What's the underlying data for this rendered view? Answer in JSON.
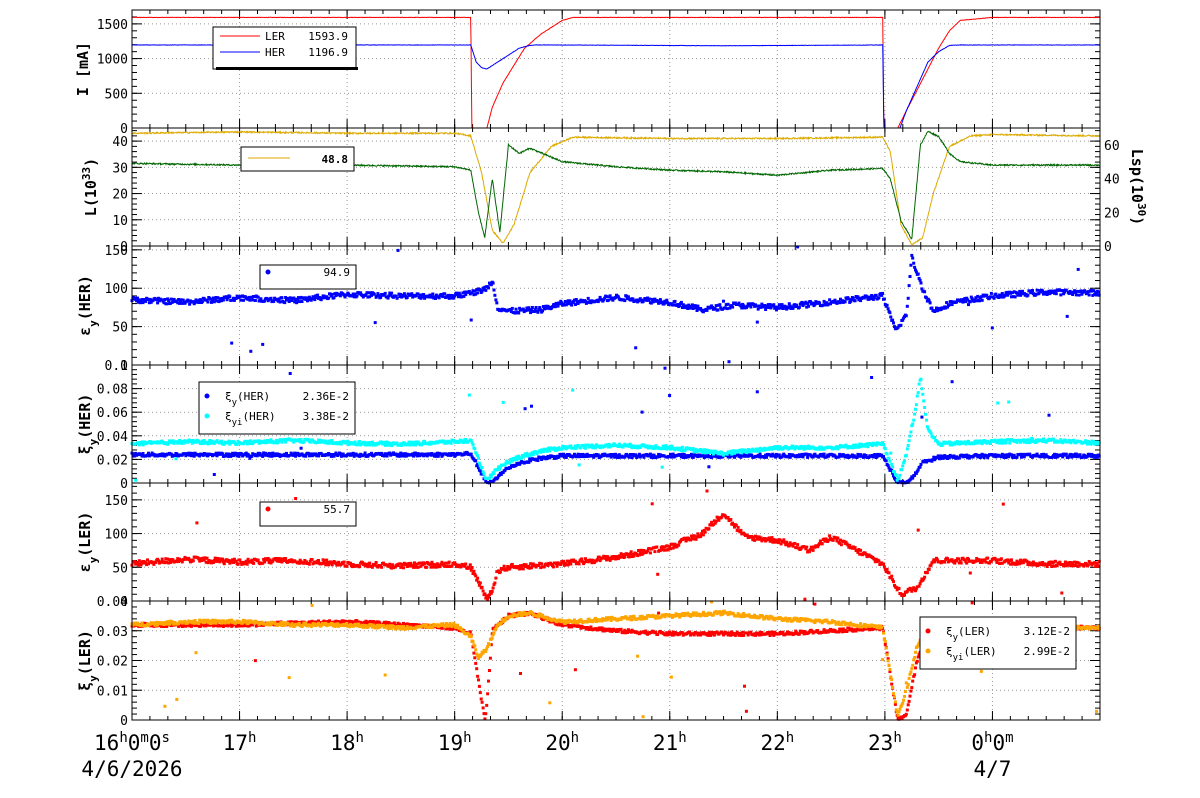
{
  "colors": {
    "red": "#ff0000",
    "blue": "#0000ff",
    "cyan": "#00ffff",
    "gold": "#ddaa00",
    "green": "#006600",
    "orange": "#ffa500"
  },
  "time_axis": {
    "ticks": [
      {
        "h": 16,
        "label": "16",
        "suffix": "0m0s"
      },
      {
        "h": 17,
        "label": "17"
      },
      {
        "h": 18,
        "label": "18"
      },
      {
        "h": 19,
        "label": "19"
      },
      {
        "h": 20,
        "label": "20"
      },
      {
        "h": 21,
        "label": "21"
      },
      {
        "h": 22,
        "label": "22"
      },
      {
        "h": 23,
        "label": "23"
      },
      {
        "h": 24,
        "label": "0",
        "suffix": "0m"
      }
    ],
    "date_labels": [
      {
        "h": 16,
        "text": "4/6/2026"
      },
      {
        "h": 24,
        "text": "4/7"
      }
    ]
  },
  "chart_data": [
    {
      "id": "current",
      "type": "line",
      "ylabel": "I [mA]",
      "ylim": [
        0,
        1700
      ],
      "yticks": [
        0,
        500,
        1000,
        1500
      ],
      "series": [
        {
          "name": "LER",
          "value": "1593.9",
          "color": "red",
          "x": [
            16,
            19.15,
            19.16,
            19.3,
            19.35,
            19.45,
            19.55,
            19.65,
            19.8,
            20.0,
            20.1,
            22.98,
            22.99,
            23.12,
            23.2,
            23.3,
            23.4,
            23.5,
            23.6,
            23.7,
            24.0,
            25.0
          ],
          "y": [
            1593,
            1593,
            0,
            0,
            300,
            650,
            900,
            1150,
            1350,
            1550,
            1593,
            1593,
            0,
            0,
            250,
            550,
            850,
            1150,
            1400,
            1550,
            1593,
            1593
          ]
        },
        {
          "name": "HER",
          "value": "1196.9",
          "color": "blue",
          "x": [
            16,
            19.15,
            19.2,
            19.25,
            19.3,
            19.35,
            19.5,
            19.6,
            19.7,
            19.75,
            20.0,
            21.5,
            22.98,
            22.99,
            23.14,
            23.2,
            23.3,
            23.4,
            23.5,
            23.6,
            23.7,
            25.0
          ],
          "y": [
            1196,
            1196,
            950,
            870,
            850,
            900,
            1050,
            1150,
            1190,
            1196,
            1196,
            1185,
            1196,
            0,
            0,
            250,
            600,
            950,
            1100,
            1190,
            1196,
            1196
          ]
        }
      ]
    },
    {
      "id": "luminosity",
      "type": "line",
      "ylabel": "L(10",
      "ylabel_exp": "33",
      "ylabel_end": ")",
      "ylim": [
        0,
        45
      ],
      "yticks": [
        0,
        10,
        20,
        30,
        40
      ],
      "y2label": "Lsp(10",
      "y2label_exp": "30",
      "y2label_end": ")",
      "y2lim": [
        0,
        70
      ],
      "y2ticks": [
        0,
        20,
        40,
        60
      ],
      "legend_value": "48.8",
      "series": [
        {
          "name": "L",
          "color": "gold",
          "x": [
            16,
            17,
            18,
            19,
            19.15,
            19.25,
            19.35,
            19.45,
            19.55,
            19.7,
            19.9,
            20.1,
            21,
            22,
            22.98,
            23.05,
            23.15,
            23.25,
            23.35,
            23.45,
            23.6,
            23.8,
            24,
            25
          ],
          "y": [
            43,
            43.5,
            43,
            43,
            42,
            28,
            6,
            1,
            8,
            28,
            38,
            41.5,
            41,
            41,
            41.5,
            36,
            8,
            0.5,
            3,
            20,
            38,
            42,
            42.5,
            42
          ]
        },
        {
          "name": "Lsp",
          "color": "green",
          "axis": "y2",
          "x": [
            16,
            17,
            17.5,
            18,
            19,
            19.15,
            19.22,
            19.28,
            19.35,
            19.42,
            19.5,
            19.6,
            19.7,
            20,
            20.5,
            21,
            21.5,
            22,
            22.5,
            22.98,
            23.05,
            23.15,
            23.25,
            23.33,
            23.4,
            23.5,
            23.6,
            23.7,
            24,
            25
          ],
          "y": [
            49,
            48,
            47,
            48,
            47,
            45,
            20,
            5,
            40,
            8,
            60,
            55,
            58,
            50,
            47,
            45,
            44,
            42,
            45,
            46,
            40,
            15,
            4,
            60,
            68,
            65,
            55,
            50,
            48,
            48
          ]
        }
      ]
    },
    {
      "id": "eps_her",
      "type": "scatter",
      "ylabel": "ε",
      "ylabel_sub": "y",
      "ylabel_end": "(HER)",
      "ylim": [
        0,
        155
      ],
      "yticks": [
        0,
        50,
        100,
        150
      ],
      "series": [
        {
          "name": "",
          "value": "94.9",
          "color": "blue",
          "x": [
            16,
            16.5,
            17,
            17.5,
            18,
            18.5,
            19,
            19.2,
            19.3,
            19.35,
            19.4,
            19.5,
            19.8,
            20,
            20.5,
            21,
            21.3,
            21.6,
            22,
            22.5,
            22.98,
            23.1,
            23.2,
            23.25,
            23.35,
            23.45,
            23.6,
            24,
            24.5,
            25
          ],
          "y": [
            85,
            82,
            88,
            84,
            92,
            90,
            90,
            95,
            100,
            110,
            75,
            70,
            72,
            80,
            88,
            82,
            72,
            78,
            75,
            82,
            90,
            45,
            65,
            140,
            100,
            70,
            80,
            90,
            95,
            94
          ]
        }
      ]
    },
    {
      "id": "xi_her",
      "type": "scatter",
      "ylabel": "ξ",
      "ylabel_sub": "y",
      "ylabel_end": "(HER)",
      "ylim": [
        0,
        0.1
      ],
      "yticks": [
        0,
        0.02,
        0.04,
        0.06,
        0.08,
        0.1
      ],
      "series": [
        {
          "name": "ξy(HER)",
          "value": "2.36E-2",
          "color": "blue",
          "x": [
            16,
            17,
            18,
            19,
            19.15,
            19.3,
            19.35,
            19.45,
            19.6,
            19.8,
            20,
            21,
            22,
            22.98,
            23.12,
            23.2,
            23.28,
            23.35,
            23.5,
            24,
            25
          ],
          "y": [
            0.024,
            0.024,
            0.024,
            0.024,
            0.025,
            0,
            0,
            0.01,
            0.017,
            0.021,
            0.023,
            0.023,
            0.023,
            0.023,
            0,
            0,
            0.007,
            0.017,
            0.022,
            0.023,
            0.023
          ]
        },
        {
          "name": "ξyi(HER)",
          "value": "3.38E-2",
          "color": "cyan",
          "x": [
            16,
            16.5,
            17,
            17.5,
            18,
            18.5,
            19,
            19.15,
            19.3,
            19.4,
            19.5,
            19.6,
            19.8,
            20,
            20.5,
            21,
            21.5,
            22,
            22.5,
            22.98,
            23.12,
            23.2,
            23.28,
            23.33,
            23.4,
            23.5,
            24,
            24.5,
            25
          ],
          "y": [
            0.033,
            0.035,
            0.034,
            0.036,
            0.034,
            0.033,
            0.035,
            0.036,
            0.002,
            0.012,
            0.018,
            0.022,
            0.027,
            0.03,
            0.032,
            0.03,
            0.025,
            0.03,
            0.03,
            0.033,
            0.002,
            0.025,
            0.06,
            0.09,
            0.045,
            0.033,
            0.035,
            0.036,
            0.034
          ]
        }
      ]
    },
    {
      "id": "eps_ler",
      "type": "scatter",
      "ylabel": "ε",
      "ylabel_sub": "y",
      "ylabel_end": "(LER)",
      "ylim": [
        0,
        175
      ],
      "yticks": [
        0,
        50,
        100,
        150
      ],
      "series": [
        {
          "name": "",
          "value": "55.7",
          "color": "red",
          "x": [
            16,
            16.5,
            17,
            17.5,
            18,
            18.5,
            19,
            19.15,
            19.3,
            19.35,
            19.4,
            19.5,
            20,
            20.5,
            21,
            21.3,
            21.5,
            21.7,
            22,
            22.3,
            22.5,
            22.98,
            23.15,
            23.3,
            23.45,
            24,
            24.5,
            25
          ],
          "y": [
            55,
            62,
            58,
            60,
            55,
            52,
            55,
            50,
            5,
            15,
            45,
            50,
            55,
            65,
            80,
            100,
            130,
            95,
            90,
            75,
            95,
            55,
            10,
            20,
            60,
            60,
            55,
            55
          ]
        }
      ]
    },
    {
      "id": "xi_ler",
      "type": "scatter",
      "ylabel": "ξ",
      "ylabel_sub": "y",
      "ylabel_end": "(LER)",
      "ylim": [
        0,
        0.04
      ],
      "yticks": [
        0,
        0.01,
        0.02,
        0.03,
        0.04
      ],
      "series": [
        {
          "name": "ξy(LER)",
          "value": "3.12E-2",
          "color": "red",
          "x": [
            16,
            17,
            18,
            19,
            19.15,
            19.28,
            19.3,
            19.35,
            19.5,
            19.7,
            20,
            20.5,
            21,
            21.5,
            22,
            22.5,
            22.98,
            23.12,
            23.2,
            23.3,
            23.4,
            23.6,
            24,
            25
          ],
          "y": [
            0.032,
            0.032,
            0.033,
            0.031,
            0.029,
            0,
            0.005,
            0.03,
            0.035,
            0.036,
            0.032,
            0.03,
            0.029,
            0.029,
            0.029,
            0.03,
            0.031,
            0,
            0.002,
            0.02,
            0.03,
            0.031,
            0.031,
            0.031
          ]
        },
        {
          "name": "ξyi(LER)",
          "value": "2.99E-2",
          "color": "orange",
          "x": [
            16,
            16.5,
            17,
            17.5,
            18,
            18.5,
            19,
            19.15,
            19.22,
            19.3,
            19.4,
            19.5,
            19.7,
            20,
            20.5,
            21,
            21.5,
            22,
            22.5,
            22.98,
            23.12,
            23.2,
            23.3,
            23.4,
            23.6,
            24,
            24.5,
            25
          ],
          "y": [
            0.032,
            0.033,
            0.033,
            0.032,
            0.032,
            0.031,
            0.032,
            0.028,
            0.021,
            0.024,
            0.032,
            0.035,
            0.036,
            0.033,
            0.034,
            0.035,
            0.036,
            0.034,
            0.033,
            0.031,
            0.001,
            0.01,
            0.025,
            0.03,
            0.031,
            0.031,
            0.031,
            0.031
          ]
        }
      ]
    }
  ]
}
